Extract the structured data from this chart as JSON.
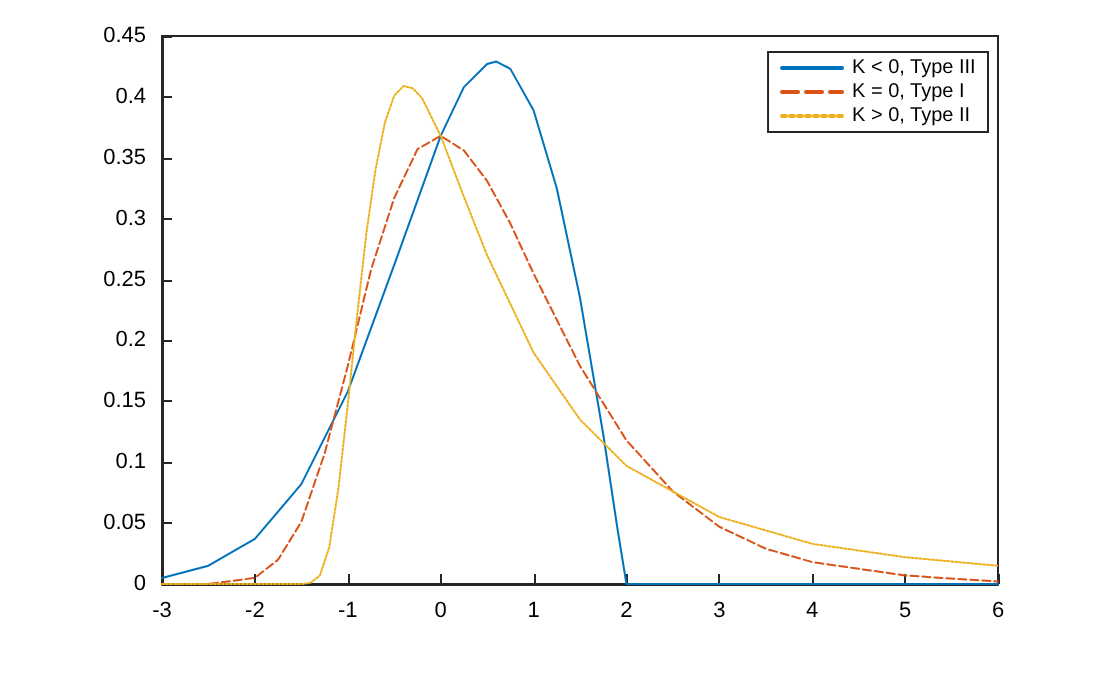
{
  "chart_data": {
    "type": "line",
    "xlim": [
      -3,
      6
    ],
    "xticks": [
      -3,
      -2,
      -1,
      0,
      1,
      2,
      3,
      4,
      5,
      6
    ],
    "ylim": [
      0,
      0.45
    ],
    "yticks": [
      0,
      0.05,
      0.1,
      0.15,
      0.2,
      0.25,
      0.3,
      0.35,
      0.4,
      0.45
    ],
    "grid": false,
    "legend": "top right",
    "marker": "none",
    "series": [
      {
        "name": "K < 0, Type III",
        "color": "#0072bd",
        "line_style": "solid",
        "x": [
          -3,
          -2.5,
          -2,
          -1.5,
          -1,
          -0.5,
          0,
          0.25,
          0.5,
          0.6,
          0.75,
          1,
          1.25,
          1.5,
          1.75,
          1.9,
          2,
          3,
          4,
          5,
          6
        ],
        "values": [
          0.005,
          0.015,
          0.037,
          0.082,
          0.158,
          0.262,
          0.368,
          0.408,
          0.427,
          0.429,
          0.423,
          0.389,
          0.325,
          0.235,
          0.123,
          0.047,
          0,
          0,
          0,
          0,
          0
        ]
      },
      {
        "name": "K = 0, Type I",
        "color": "#d95319",
        "line_style": "dashed",
        "x": [
          -3,
          -2.5,
          -2,
          -1.75,
          -1.5,
          -1.25,
          -1,
          -0.75,
          -0.5,
          -0.25,
          0,
          0.25,
          0.5,
          0.75,
          1,
          1.5,
          2,
          2.5,
          3,
          3.5,
          4,
          5,
          6
        ],
        "values": [
          0,
          0,
          0.005,
          0.02,
          0.051,
          0.107,
          0.179,
          0.258,
          0.317,
          0.357,
          0.368,
          0.356,
          0.331,
          0.296,
          0.255,
          0.179,
          0.118,
          0.076,
          0.047,
          0.029,
          0.018,
          0.007,
          0.002
        ]
      },
      {
        "name": "K > 0, Type II",
        "color": "#edb120",
        "line_style": "dotted",
        "x": [
          -3,
          -2,
          -1.5,
          -1.4,
          -1.3,
          -1.2,
          -1.1,
          -1,
          -0.9,
          -0.8,
          -0.7,
          -0.6,
          -0.5,
          -0.4,
          -0.3,
          -0.2,
          0,
          0.25,
          0.5,
          1,
          1.5,
          2,
          3,
          4,
          5,
          6
        ],
        "values": [
          0,
          0,
          0,
          0.001,
          0.007,
          0.03,
          0.079,
          0.147,
          0.22,
          0.288,
          0.341,
          0.379,
          0.401,
          0.409,
          0.407,
          0.399,
          0.368,
          0.318,
          0.27,
          0.19,
          0.135,
          0.097,
          0.055,
          0.033,
          0.022,
          0.015
        ]
      }
    ]
  }
}
